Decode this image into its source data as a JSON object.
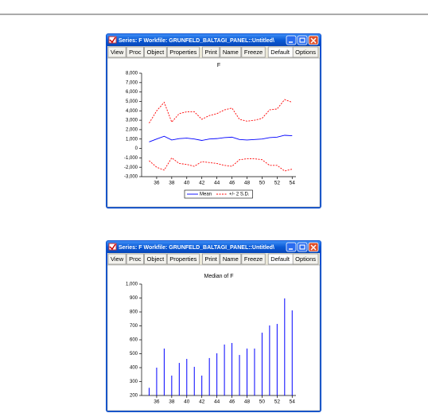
{
  "windows": [
    {
      "title": "Series: F   Workfile: GRUNFELD_BALTAGI_PANEL::Untitled\\",
      "toolbar": [
        "View",
        "Proc",
        "Object",
        "Properties",
        "Print",
        "Name",
        "Freeze"
      ],
      "dropdown": "Default",
      "options": "Options"
    },
    {
      "title": "Series: F   Workfile: GRUNFELD_BALTAGI_PANEL::Untitled\\",
      "toolbar": [
        "View",
        "Proc",
        "Object",
        "Properties",
        "Print",
        "Name",
        "Freeze"
      ],
      "dropdown": "Default",
      "options": "Options"
    }
  ],
  "chart_data": [
    {
      "type": "line",
      "title": "F",
      "x": [
        35,
        36,
        37,
        38,
        39,
        40,
        41,
        42,
        43,
        44,
        45,
        46,
        47,
        48,
        49,
        50,
        51,
        52,
        53,
        54
      ],
      "series": [
        {
          "name": "Mean",
          "color": "#0000ff",
          "values": [
            700,
            1000,
            1300,
            900,
            1050,
            1100,
            1000,
            850,
            1000,
            1050,
            1150,
            1200,
            950,
            900,
            950,
            1000,
            1150,
            1200,
            1400,
            1350
          ]
        },
        {
          "name": "+/- 2 S.D.",
          "color": "#ff0000",
          "upper": [
            2700,
            4000,
            4900,
            2800,
            3700,
            3900,
            3900,
            3100,
            3500,
            3700,
            4100,
            4300,
            3100,
            2900,
            3000,
            3200,
            4100,
            4200,
            5200,
            4900
          ],
          "lower": [
            -1300,
            -2000,
            -2300,
            -1000,
            -1600,
            -1700,
            -1900,
            -1400,
            -1500,
            -1600,
            -1800,
            -1900,
            -1200,
            -1100,
            -1100,
            -1200,
            -1800,
            -1800,
            -2400,
            -2200
          ]
        }
      ],
      "xlim": [
        34,
        54.5
      ],
      "xticks": [
        36,
        38,
        40,
        42,
        44,
        46,
        48,
        50,
        52,
        54
      ],
      "ylim": [
        -3000,
        8000
      ],
      "yticks": [
        {
          "value": -3000,
          "label": "-3,000"
        },
        {
          "value": -2000,
          "label": "-2,000"
        },
        {
          "value": -1000,
          "label": "-1,000"
        },
        0,
        {
          "value": 1000,
          "label": "1,000"
        },
        {
          "value": 2000,
          "label": "2,000"
        },
        {
          "value": 3000,
          "label": "3,000"
        },
        {
          "value": 4000,
          "label": "4,000"
        },
        {
          "value": 5000,
          "label": "5,000"
        },
        {
          "value": 6000,
          "label": "6,000"
        },
        {
          "value": 7000,
          "label": "7,000"
        },
        {
          "value": 8000,
          "label": "8,000"
        }
      ],
      "legend": "bottom"
    },
    {
      "type": "bar",
      "title": "Median of F",
      "color": "#0000ff",
      "x": [
        35,
        36,
        37,
        38,
        39,
        40,
        41,
        42,
        43,
        44,
        45,
        46,
        47,
        48,
        49,
        50,
        51,
        52,
        53,
        54
      ],
      "values": [
        255,
        400,
        537,
        343,
        434,
        463,
        406,
        343,
        469,
        503,
        566,
        577,
        491,
        537,
        537,
        651,
        703,
        714,
        897,
        811
      ],
      "xlim": [
        34,
        54.5
      ],
      "xticks": [
        36,
        38,
        40,
        42,
        44,
        46,
        48,
        50,
        52,
        54
      ],
      "ylim": [
        200,
        1000
      ],
      "yticks": [
        200,
        300,
        400,
        500,
        600,
        700,
        800,
        900,
        {
          "value": 1000,
          "label": "1,000"
        }
      ]
    }
  ]
}
